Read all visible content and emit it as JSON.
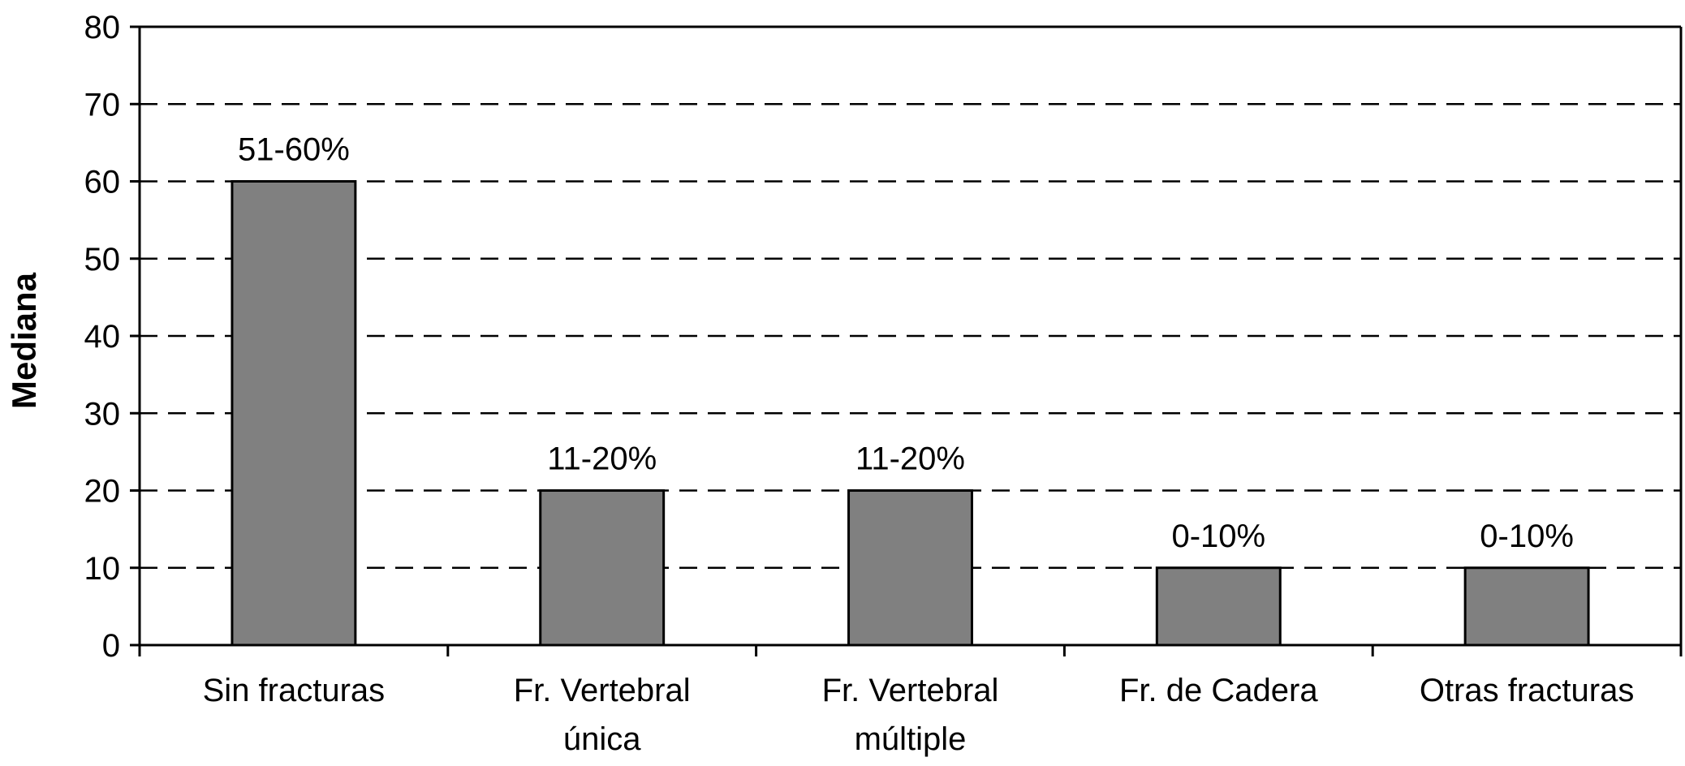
{
  "chart_data": {
    "type": "bar",
    "title": "",
    "xlabel": "",
    "ylabel": "Mediana",
    "ylim": [
      0,
      80
    ],
    "yticks": [
      0,
      10,
      20,
      30,
      40,
      50,
      60,
      70,
      80
    ],
    "grid": "horizontal dashed",
    "categories": [
      [
        "Sin fracturas"
      ],
      [
        "Fr. Vertebral",
        "única"
      ],
      [
        "Fr. Vertebral",
        "múltiple"
      ],
      [
        "Fr. de Cadera"
      ],
      [
        "Otras fracturas"
      ]
    ],
    "values": [
      60,
      20,
      20,
      10,
      10
    ],
    "data_labels": [
      "51-60%",
      "11-20%",
      "11-20%",
      "0-10%",
      "0-10%"
    ],
    "bar_color": "#808080"
  }
}
